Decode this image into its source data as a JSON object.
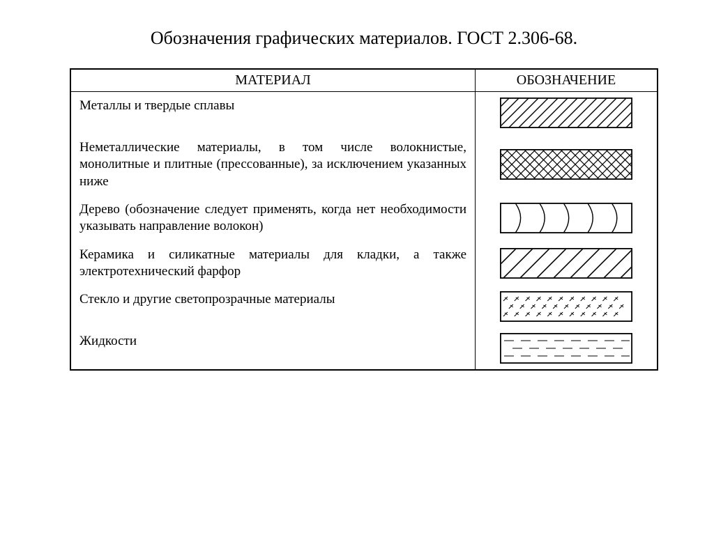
{
  "title": "Обозначения графических материалов. ГОСТ 2.306-68.",
  "headers": {
    "material": "МАТЕРИАЛ",
    "designation": "ОБОЗНАЧЕНИЕ"
  },
  "colors": {
    "stroke": "#000000",
    "background": "#ffffff",
    "border": "#000000"
  },
  "swatch": {
    "width": 190,
    "height": 44,
    "border_width": 1.8
  },
  "rows": [
    {
      "material": "Металлы и твердые сплавы",
      "pattern": {
        "type": "hatch45",
        "spacing": 14,
        "stroke_width": 1.4
      }
    },
    {
      "material": "Неметаллические материалы, в том числе волокнистые, монолитные и плитные (прессованные), за исключением указанных ниже",
      "pattern": {
        "type": "crosshatch",
        "spacing": 13,
        "stroke_width": 1.2
      }
    },
    {
      "material": "Дерево (обозначение следует применять, когда нет необ­ходимости указывать направление волокон)",
      "pattern": {
        "type": "wood-arcs",
        "count": 5,
        "stroke_width": 1.4
      }
    },
    {
      "material": "Керамика и силикатные материалы для кладки, а также электротехнический фарфор",
      "pattern": {
        "type": "hatch45",
        "spacing": 24,
        "stroke_width": 1.6
      }
    },
    {
      "material": "Стекло и другие светопрозрачные материалы",
      "pattern": {
        "type": "glass-ticks",
        "rows": 3,
        "cols": 11,
        "stroke_width": 1.0
      }
    },
    {
      "material": "Жидкости",
      "pattern": {
        "type": "liquid-dashes",
        "rows": 3,
        "stroke_width": 1.0
      }
    }
  ]
}
